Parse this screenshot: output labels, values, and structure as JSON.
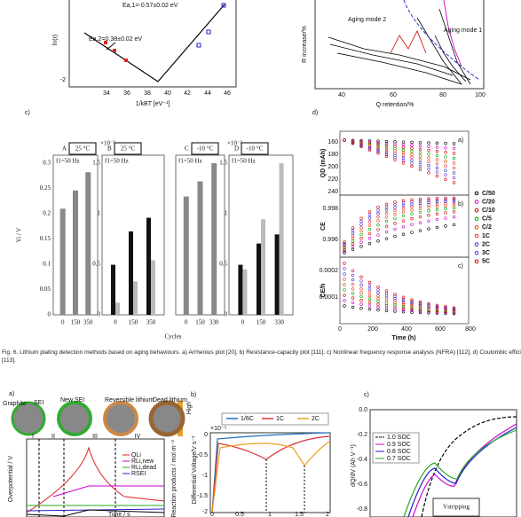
{
  "top_a": {
    "ea1": "Ea,1=-0.57±0.02 eV",
    "ea2": "Ea,2=0.38±0.02 eV",
    "y_label": "ln(r)",
    "y_ticks": [
      "-2"
    ],
    "x_ticks": [
      "34",
      "36",
      "38",
      "40",
      "42",
      "44",
      "46"
    ],
    "x_label": "1/kBT [eV⁻¹]"
  },
  "top_b": {
    "annotations": [
      "Aging mode 2",
      "Aging mode 1"
    ],
    "y_label": "R increase/%",
    "x_ticks": [
      "40",
      "60",
      "80",
      "100"
    ],
    "x_label": "Q retention/%"
  },
  "panel_c": {
    "label": "c)",
    "y_label": "Yi / V",
    "y_ticks": [
      "0",
      "0.05",
      "0.1",
      "0.15",
      "0.2",
      "0.25",
      "0.3"
    ],
    "x_label": "Cycles",
    "subplots": [
      {
        "letter": "A",
        "temp": "25 °C",
        "freq": "f1=50 Hz",
        "x_ticks": [
          "0",
          "150",
          "350"
        ]
      },
      {
        "letter": "B",
        "temp": "25 °C",
        "freq": "f1=50 Hz",
        "scale": "×10⁻³",
        "y_ticks": [
          "0",
          "0.5",
          "1",
          "1.5"
        ],
        "x_ticks": [
          "0",
          "150",
          "350"
        ]
      },
      {
        "letter": "C",
        "temp": "-10 °C",
        "freq": "f1=50 Hz",
        "x_ticks": [
          "0",
          "150",
          "330"
        ]
      },
      {
        "letter": "D",
        "temp": "-10 °C",
        "freq": "f1=50 Hz",
        "scale": "×10⁻³",
        "y_ticks": [
          "0",
          "0.5",
          "1",
          "1.5"
        ],
        "x_ticks": [
          "0",
          "150",
          "330"
        ]
      }
    ]
  },
  "panel_d": {
    "label": "d)",
    "y_labels": [
      "QD (mAh)",
      "CE",
      "CE/h"
    ],
    "letters": [
      "a)",
      "b)",
      "c)"
    ],
    "y_ticks_a": [
      "240",
      "220",
      "200",
      "180",
      "160"
    ],
    "y_ticks_b": [
      "0.998",
      "0.996"
    ],
    "y_ticks_c": [
      "0.0002",
      "0.0001"
    ],
    "x_ticks": [
      "0",
      "200",
      "400",
      "600",
      "800"
    ],
    "x_label": "Time (h)",
    "legend": [
      "C/50",
      "C/20",
      "C/10",
      "C/5",
      "C/2",
      "1C",
      "2C",
      "3C",
      "5C"
    ]
  },
  "caption": "Fig. 6. Lithium plating detection methods based on aging behaviours. a) Arrhenius plot [20], b) Resistance-capacity plot [111], c) Nonlinear frequency response analysis (NFRA) [112], d) Coulombic efficiency [113].",
  "bottom_a": {
    "label": "a)",
    "stages": [
      "Graphite",
      "SEI",
      "New SEI",
      "Reversible lithium",
      "Dead lithium"
    ],
    "roman": [
      "I",
      "II",
      "III",
      "IV"
    ],
    "color_bar": "High",
    "y_label": "Overpotential / V",
    "y2_label": "Reaction products / mol m⁻³",
    "legend": [
      "QLi",
      "RLi,new",
      "RLi,dead",
      "RSEI"
    ],
    "x_label": "Time / s"
  },
  "bottom_b": {
    "label": "b)",
    "legend": [
      "1/6C",
      "1C",
      "2C"
    ],
    "scale": "×10⁻⁵",
    "y_ticks": [
      "0",
      "-0.5",
      "-1",
      "-1.5",
      "-2"
    ],
    "x_ticks": [
      "0",
      "0.5",
      "1",
      "1.5",
      "2"
    ],
    "y_label": "Differential Voltage/V s⁻¹"
  },
  "bottom_c": {
    "label": "c)",
    "legend": [
      "1.0 SOC",
      "0.9 SOC",
      "0.8 SOC",
      "0.7 SOC"
    ],
    "y_ticks": [
      "0.0",
      "-0.2",
      "-0.4",
      "-0.6",
      "-0.8"
    ],
    "y_label": "dQ/dV (Ah V⁻¹)",
    "annotation": "Vstripping"
  }
}
